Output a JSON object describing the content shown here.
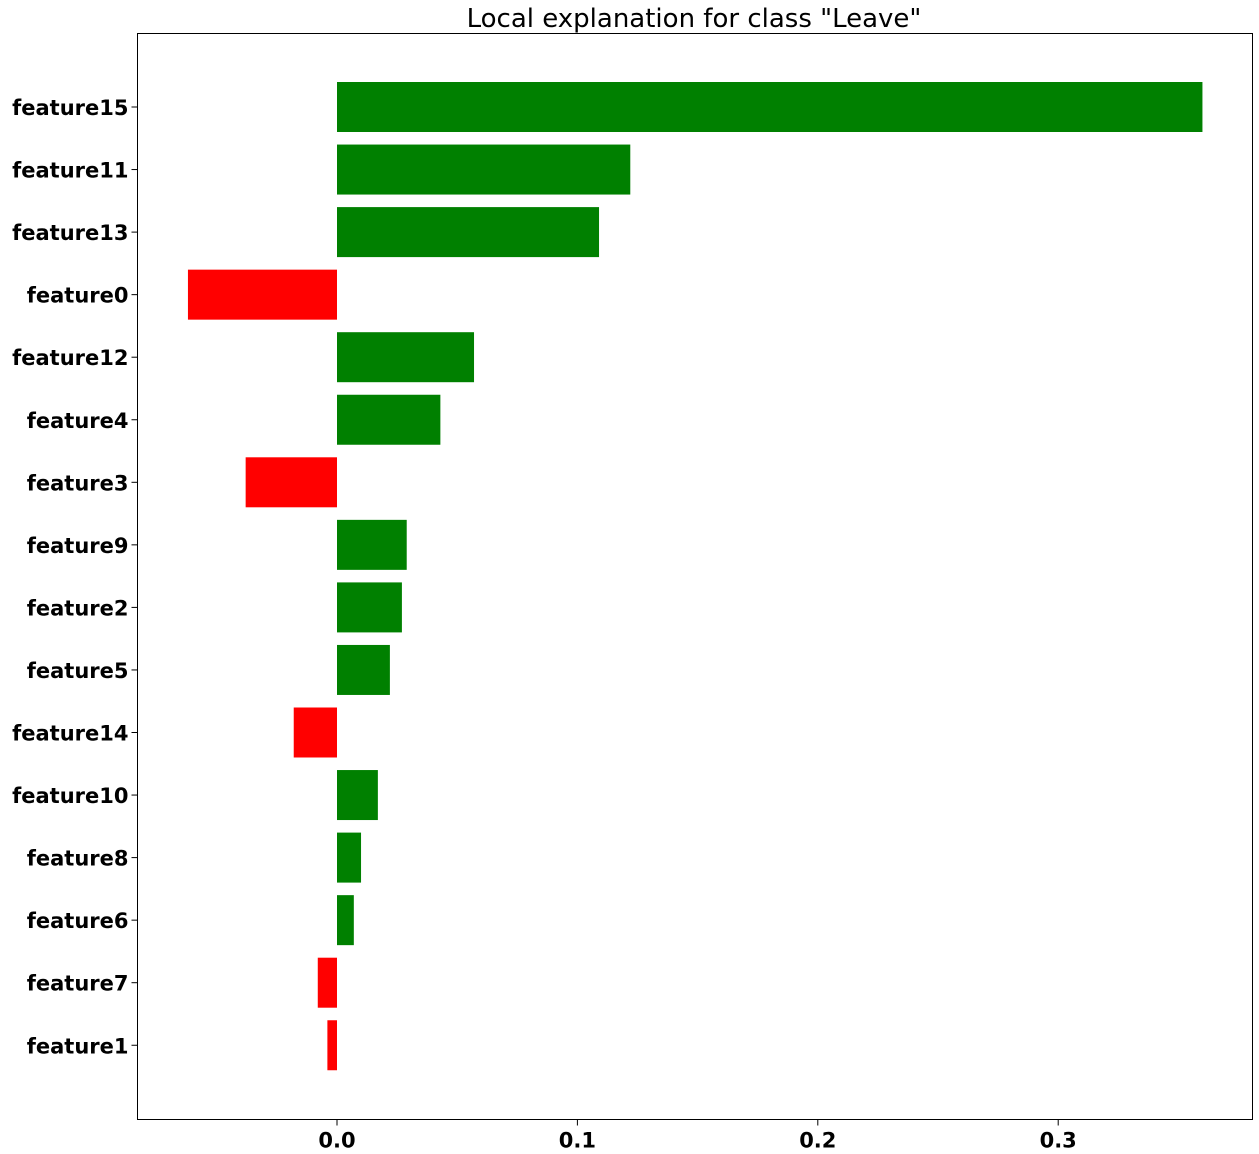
{
  "chart_data": {
    "type": "bar",
    "orientation": "horizontal",
    "title": "Local explanation for class \"Leave\"",
    "xlabel": "",
    "ylabel": "",
    "xlim": [
      -0.083,
      0.381
    ],
    "xticks": [
      0.0,
      0.1,
      0.2,
      0.3
    ],
    "xtick_labels": [
      "0.0",
      "0.1",
      "0.2",
      "0.3"
    ],
    "grid": false,
    "categories": [
      "feature15",
      "feature11",
      "feature13",
      "feature0",
      "feature12",
      "feature4",
      "feature3",
      "feature9",
      "feature2",
      "feature5",
      "feature14",
      "feature10",
      "feature8",
      "feature6",
      "feature7",
      "feature1"
    ],
    "values": [
      0.36,
      0.122,
      0.109,
      -0.062,
      0.057,
      0.043,
      -0.038,
      0.029,
      0.027,
      0.022,
      -0.018,
      0.017,
      0.01,
      0.007,
      -0.008,
      -0.004
    ],
    "colors": {
      "positive": "#008000",
      "negative": "#ff0000"
    }
  }
}
